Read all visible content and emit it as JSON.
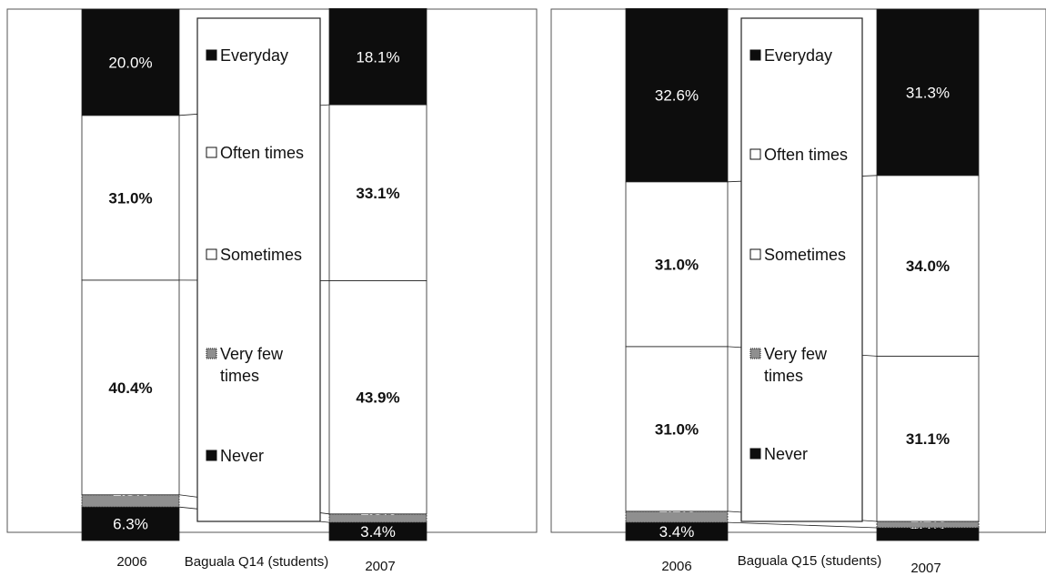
{
  "colors": {
    "Everyday": "#0d0d0d",
    "Often times": "#ffffff",
    "Sometimes": "#ffffff",
    "Very few times": "#8f8f8f",
    "Never": "#0d0d0d"
  },
  "chart_data": [
    {
      "type": "bar",
      "stacked": true,
      "percent_scale": true,
      "caption": "Baguala Q14 (students)",
      "categories": [
        "2006",
        "2007"
      ],
      "series": [
        {
          "name": "Never",
          "values": [
            6.3,
            3.4
          ],
          "labels": [
            "6.3%",
            "3.4%"
          ]
        },
        {
          "name": "Very few times",
          "values": [
            2.3,
            1.6
          ],
          "labels": [
            "2.3%",
            "1.6%"
          ]
        },
        {
          "name": "Sometimes",
          "values": [
            40.4,
            43.9
          ],
          "labels": [
            "40.4%",
            "43.9%"
          ]
        },
        {
          "name": "Often times",
          "values": [
            31.0,
            33.1
          ],
          "labels": [
            "31.0%",
            "33.1%"
          ]
        },
        {
          "name": "Everyday",
          "values": [
            20.0,
            18.1
          ],
          "labels": [
            "20.0%",
            "18.1%"
          ]
        }
      ],
      "legend": [
        "Everyday",
        "Often times",
        "Sometimes",
        "Very few times",
        "Never"
      ],
      "legend_placement": "center"
    },
    {
      "type": "bar",
      "stacked": true,
      "percent_scale": true,
      "caption": "Baguala Q15 (students)",
      "categories": [
        "2006",
        "2007"
      ],
      "series": [
        {
          "name": "Never",
          "values": [
            3.4,
            2.4
          ],
          "labels": [
            "3.4%",
            "2.4%"
          ]
        },
        {
          "name": "Very few times",
          "values": [
            2.1,
            1.2
          ],
          "labels": [
            "2.1%",
            "1.2%"
          ]
        },
        {
          "name": "Sometimes",
          "values": [
            31.0,
            31.1
          ],
          "labels": [
            "31.0%",
            "31.1%"
          ]
        },
        {
          "name": "Often times",
          "values": [
            31.0,
            34.0
          ],
          "labels": [
            "31.0%",
            "34.0%"
          ]
        },
        {
          "name": "Everyday",
          "values": [
            32.6,
            31.3
          ],
          "labels": [
            "32.6%",
            "31.3%"
          ]
        }
      ],
      "legend": [
        "Everyday",
        "Often times",
        "Sometimes",
        "Very few times",
        "Never"
      ],
      "legend_placement": "center"
    }
  ]
}
